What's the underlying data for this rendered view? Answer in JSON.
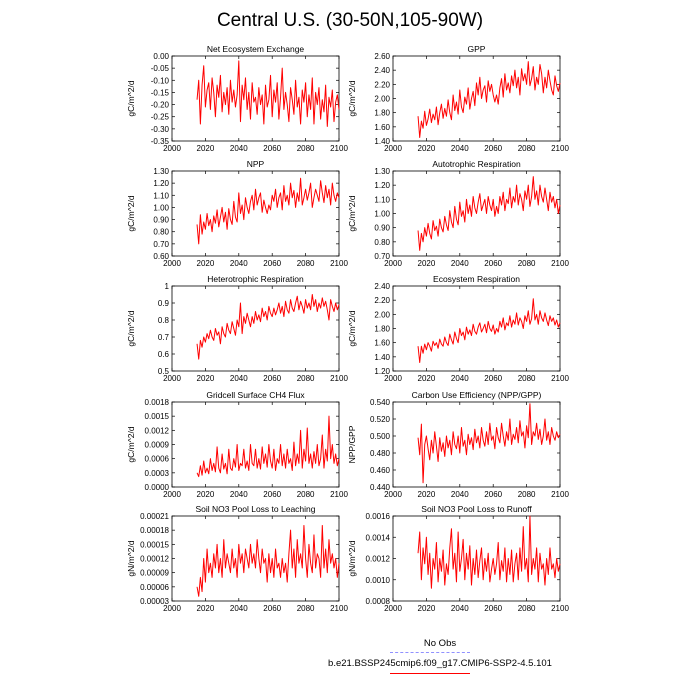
{
  "title": "Central U.S. (30-50N,105-90W)",
  "legend": {
    "obs_label": "No Obs",
    "obs_color": "#9090ff",
    "model_label": "b.e21.BSSP245cmip6.f09_g17.CMIP6-SSP2-4.5.101",
    "model_color": "#ff0000"
  },
  "chart_data": [
    {
      "type": "line",
      "title": "Net Ecosystem Exchange",
      "ylabel": "gC/m^2/d",
      "xlim": [
        2000,
        2100
      ],
      "ylim": [
        -0.35,
        0.0
      ],
      "xticks": [
        2000,
        2020,
        2040,
        2060,
        2080,
        2100
      ],
      "yticks": [
        -0.35,
        -0.3,
        -0.25,
        -0.2,
        -0.15,
        -0.1,
        -0.05,
        0.0
      ],
      "ytick_labels": [
        "-0.35",
        "-0.30",
        "-0.25",
        "-0.20",
        "-0.15",
        "-0.10",
        "-0.05",
        "0.00"
      ],
      "x_start": 2015,
      "x_end": 2100,
      "y": [
        -0.18,
        -0.1,
        -0.28,
        -0.12,
        -0.04,
        -0.21,
        -0.14,
        -0.11,
        -0.22,
        -0.09,
        -0.15,
        -0.25,
        -0.12,
        -0.17,
        -0.08,
        -0.23,
        -0.15,
        -0.2,
        -0.13,
        -0.24,
        -0.1,
        -0.19,
        -0.14,
        -0.21,
        -0.16,
        -0.02,
        -0.27,
        -0.12,
        -0.18,
        -0.09,
        -0.22,
        -0.15,
        -0.26,
        -0.11,
        -0.19,
        -0.17,
        -0.24,
        -0.13,
        -0.2,
        -0.16,
        -0.28,
        -0.12,
        -0.21,
        -0.18,
        -0.08,
        -0.25,
        -0.14,
        -0.19,
        -0.11,
        -0.26,
        -0.17,
        -0.05,
        -0.22,
        -0.15,
        -0.2,
        -0.27,
        -0.13,
        -0.18,
        -0.24,
        -0.1,
        -0.21,
        -0.17,
        -0.28,
        -0.14,
        -0.19,
        -0.11,
        -0.25,
        -0.16,
        -0.22,
        -0.09,
        -0.28,
        -0.15,
        -0.2,
        -0.13,
        -0.26,
        -0.18,
        -0.23,
        -0.12,
        -0.29,
        -0.17,
        -0.21,
        -0.14,
        -0.27,
        -0.19,
        -0.16,
        -0.22
      ]
    },
    {
      "type": "line",
      "title": "GPP",
      "ylabel": "gC/m^2/d",
      "xlim": [
        2000,
        2100
      ],
      "ylim": [
        1.4,
        2.6
      ],
      "xticks": [
        2000,
        2020,
        2040,
        2060,
        2080,
        2100
      ],
      "yticks": [
        1.4,
        1.6,
        1.8,
        2.0,
        2.2,
        2.4,
        2.6
      ],
      "ytick_labels": [
        "1.40",
        "1.60",
        "1.80",
        "2.00",
        "2.20",
        "2.40",
        "2.60"
      ],
      "x_start": 2015,
      "x_end": 2100,
      "y": [
        1.75,
        1.45,
        1.68,
        1.58,
        1.82,
        1.62,
        1.71,
        1.85,
        1.66,
        1.78,
        1.7,
        1.88,
        1.63,
        1.8,
        1.92,
        1.72,
        1.86,
        1.75,
        1.98,
        1.8,
        1.7,
        2.05,
        1.83,
        1.95,
        1.78,
        2.12,
        1.88,
        1.8,
        2.02,
        1.92,
        2.15,
        1.85,
        2.0,
        2.1,
        1.9,
        2.22,
        2.05,
        2.3,
        2.0,
        2.12,
        2.18,
        1.95,
        2.25,
        2.1,
        2.2,
        2.05,
        1.95,
        2.05,
        1.92,
        2.15,
        2.28,
        2.02,
        2.35,
        2.12,
        2.22,
        2.08,
        2.32,
        2.18,
        2.4,
        2.15,
        2.3,
        2.05,
        2.42,
        2.25,
        2.35,
        2.2,
        2.52,
        2.18,
        2.28,
        2.45,
        2.12,
        2.3,
        2.2,
        2.48,
        2.35,
        2.08,
        2.3,
        2.15,
        2.4,
        2.25,
        2.12,
        2.05,
        2.32,
        2.18,
        2.1,
        2.22
      ]
    },
    {
      "type": "line",
      "title": "NPP",
      "ylabel": "gC/m^2/d",
      "xlim": [
        2000,
        2100
      ],
      "ylim": [
        0.6,
        1.3
      ],
      "xticks": [
        2000,
        2020,
        2040,
        2060,
        2080,
        2100
      ],
      "yticks": [
        0.6,
        0.7,
        0.8,
        0.9,
        1.0,
        1.1,
        1.2,
        1.3
      ],
      "ytick_labels": [
        "0.60",
        "0.70",
        "0.80",
        "0.90",
        "1.00",
        "1.10",
        "1.20",
        "1.30"
      ],
      "x_start": 2015,
      "x_end": 2100,
      "y": [
        0.86,
        0.7,
        0.94,
        0.78,
        0.88,
        0.82,
        0.95,
        0.85,
        0.9,
        0.8,
        0.93,
        0.87,
        0.98,
        0.84,
        0.92,
        1.0,
        0.88,
        0.96,
        0.82,
        0.99,
        0.9,
        0.86,
        1.05,
        0.92,
        0.88,
        1.12,
        0.95,
        1.02,
        0.9,
        1.08,
        1.0,
        0.95,
        1.05,
        1.1,
        0.98,
        1.15,
        1.02,
        1.08,
        1.12,
        0.96,
        1.06,
        1.0,
        0.95,
        1.02,
        0.98,
        1.1,
        1.05,
        1.15,
        1.0,
        1.08,
        1.12,
        0.98,
        1.18,
        1.05,
        1.1,
        1.02,
        1.2,
        1.08,
        1.14,
        1.0,
        1.12,
        1.05,
        1.24,
        1.02,
        1.08,
        1.15,
        1.06,
        1.12,
        1.2,
        1.0,
        1.08,
        1.15,
        1.1,
        1.05,
        1.22,
        1.12,
        1.04,
        1.18,
        1.08,
        1.15,
        1.02,
        1.2,
        1.1,
        1.05,
        1.12,
        1.08
      ]
    },
    {
      "type": "line",
      "title": "Autotrophic Respiration",
      "ylabel": "gC/m^2/d",
      "xlim": [
        2000,
        2100
      ],
      "ylim": [
        0.7,
        1.3
      ],
      "xticks": [
        2000,
        2020,
        2040,
        2060,
        2080,
        2100
      ],
      "yticks": [
        0.7,
        0.8,
        0.9,
        1.0,
        1.1,
        1.2,
        1.3
      ],
      "ytick_labels": [
        "0.70",
        "0.80",
        "0.90",
        "1.00",
        "1.10",
        "1.20",
        "1.30"
      ],
      "x_start": 2015,
      "x_end": 2100,
      "y": [
        0.88,
        0.74,
        0.86,
        0.8,
        0.9,
        0.84,
        0.93,
        0.86,
        0.82,
        0.95,
        0.88,
        0.91,
        0.84,
        0.96,
        0.9,
        0.87,
        0.98,
        0.92,
        0.88,
        1.02,
        0.94,
        0.9,
        1.05,
        0.96,
        0.92,
        1.08,
        0.98,
        1.02,
        0.94,
        1.1,
        1.0,
        1.06,
        0.98,
        1.12,
        1.04,
        1.0,
        1.08,
        1.14,
        1.02,
        1.06,
        1.1,
        1.0,
        1.12,
        1.06,
        1.02,
        1.1,
        0.98,
        1.05,
        1.0,
        1.12,
        1.06,
        1.15,
        1.02,
        1.1,
        1.07,
        1.18,
        1.04,
        1.12,
        1.08,
        1.2,
        1.06,
        1.14,
        1.1,
        1.02,
        1.16,
        1.1,
        1.2,
        1.05,
        1.12,
        1.26,
        1.1,
        1.16,
        1.06,
        1.2,
        1.12,
        1.08,
        1.18,
        1.1,
        1.02,
        1.15,
        1.08,
        1.12,
        1.04,
        1.1,
        1.0,
        1.06
      ]
    },
    {
      "type": "line",
      "title": "Heterotrophic Respiration",
      "ylabel": "gC/m^2/d",
      "xlim": [
        2000,
        2100
      ],
      "ylim": [
        0.5,
        1.0
      ],
      "xticks": [
        2000,
        2020,
        2040,
        2060,
        2080,
        2100
      ],
      "yticks": [
        0.5,
        0.6,
        0.7,
        0.8,
        0.9,
        1.0
      ],
      "ytick_labels": [
        "0.5",
        "0.6",
        "0.7",
        "0.8",
        "0.9",
        "1"
      ],
      "x_start": 2015,
      "x_end": 2100,
      "y": [
        0.66,
        0.57,
        0.68,
        0.64,
        0.7,
        0.67,
        0.72,
        0.69,
        0.74,
        0.7,
        0.68,
        0.75,
        0.71,
        0.73,
        0.66,
        0.76,
        0.72,
        0.7,
        0.78,
        0.74,
        0.72,
        0.79,
        0.75,
        0.71,
        0.8,
        0.76,
        0.9,
        0.72,
        0.82,
        0.78,
        0.84,
        0.8,
        0.76,
        0.82,
        0.78,
        0.85,
        0.8,
        0.83,
        0.79,
        0.87,
        0.82,
        0.85,
        0.8,
        0.88,
        0.84,
        0.82,
        0.87,
        0.83,
        0.86,
        0.9,
        0.84,
        0.88,
        0.82,
        0.91,
        0.86,
        0.84,
        0.92,
        0.87,
        0.85,
        0.9,
        0.94,
        0.86,
        0.91,
        0.88,
        0.84,
        0.92,
        0.87,
        0.9,
        0.86,
        0.95,
        0.88,
        0.92,
        0.85,
        0.9,
        0.87,
        0.93,
        0.88,
        0.91,
        0.86,
        0.8,
        0.92,
        0.88,
        0.85,
        0.9,
        0.86,
        0.89
      ]
    },
    {
      "type": "line",
      "title": "Ecosystem Respiration",
      "ylabel": "gC/m^2/d",
      "xlim": [
        2000,
        2100
      ],
      "ylim": [
        1.2,
        2.4
      ],
      "xticks": [
        2000,
        2020,
        2040,
        2060,
        2080,
        2100
      ],
      "yticks": [
        1.2,
        1.4,
        1.6,
        1.8,
        2.0,
        2.2,
        2.4
      ],
      "ytick_labels": [
        "1.20",
        "1.40",
        "1.60",
        "1.80",
        "2.00",
        "2.20",
        "2.40"
      ],
      "x_start": 2015,
      "x_end": 2100,
      "y": [
        1.55,
        1.32,
        1.55,
        1.45,
        1.58,
        1.5,
        1.6,
        1.55,
        1.48,
        1.62,
        1.56,
        1.6,
        1.52,
        1.65,
        1.58,
        1.55,
        1.68,
        1.6,
        1.56,
        1.72,
        1.64,
        1.58,
        1.75,
        1.66,
        1.6,
        1.8,
        1.7,
        1.75,
        1.64,
        1.82,
        1.72,
        1.78,
        1.7,
        1.86,
        1.76,
        1.72,
        1.82,
        1.88,
        1.75,
        1.8,
        1.86,
        1.74,
        1.9,
        1.8,
        1.76,
        1.85,
        1.72,
        1.8,
        1.75,
        1.9,
        1.82,
        1.95,
        1.78,
        1.88,
        1.84,
        1.98,
        1.82,
        1.92,
        1.86,
        2.02,
        1.85,
        1.95,
        1.9,
        1.8,
        1.98,
        1.9,
        2.05,
        1.86,
        1.94,
        2.22,
        1.92,
        2.0,
        1.86,
        2.05,
        1.95,
        1.9,
        2.02,
        1.92,
        1.84,
        1.98,
        1.9,
        1.95,
        1.85,
        1.92,
        1.82,
        1.88
      ]
    },
    {
      "type": "line",
      "title": "Gridcell Surface CH4 Flux",
      "ylabel": "gC/m^2/d",
      "xlim": [
        2000,
        2100
      ],
      "ylim": [
        0.0,
        0.0018
      ],
      "xticks": [
        2000,
        2020,
        2040,
        2060,
        2080,
        2100
      ],
      "yticks": [
        0.0,
        0.0003,
        0.0006,
        0.0009,
        0.0012,
        0.0015,
        0.0018
      ],
      "ytick_labels": [
        "0.0000",
        "0.0003",
        "0.0006",
        "0.0009",
        "0.0012",
        "0.0015",
        "0.0018"
      ],
      "x_start": 2015,
      "x_end": 2100,
      "y": [
        0.0003,
        0.00022,
        0.00045,
        0.00025,
        0.00055,
        0.0003,
        0.0004,
        0.00028,
        0.0006,
        0.00035,
        0.0005,
        0.00032,
        0.00085,
        0.0004,
        0.0003,
        0.0007,
        0.00038,
        0.0005,
        0.00028,
        0.0008,
        0.0004,
        0.00035,
        0.0006,
        0.00042,
        0.0009,
        0.00035,
        0.0005,
        0.00045,
        0.0008,
        0.0004,
        0.00055,
        0.00035,
        0.0009,
        0.0005,
        0.00045,
        0.0008,
        0.0004,
        0.0006,
        0.00038,
        0.00085,
        0.0005,
        0.0007,
        0.00042,
        0.0009,
        0.00055,
        0.0004,
        0.0008,
        0.00035,
        0.0006,
        0.0005,
        0.0009,
        0.00045,
        0.0007,
        0.0004,
        0.0008,
        0.0005,
        0.0006,
        0.00035,
        0.00095,
        0.00045,
        0.0007,
        0.0005,
        0.0012,
        0.0004,
        0.0008,
        0.00055,
        0.00125,
        0.0005,
        0.0007,
        0.0004,
        0.00075,
        0.0005,
        0.0009,
        0.00045,
        0.0006,
        0.0011,
        0.0004,
        0.0008,
        0.00055,
        0.0015,
        0.0006,
        0.0009,
        0.0005,
        0.0007,
        0.00045,
        0.0006
      ]
    },
    {
      "type": "line",
      "title": "Carbon Use Efficiency (NPP/GPP)",
      "ylabel": "NPP/GPP",
      "xlim": [
        2000,
        2100
      ],
      "ylim": [
        0.44,
        0.54
      ],
      "xticks": [
        2000,
        2020,
        2040,
        2060,
        2080,
        2100
      ],
      "yticks": [
        0.44,
        0.46,
        0.48,
        0.5,
        0.52,
        0.54
      ],
      "ytick_labels": [
        "0.440",
        "0.460",
        "0.480",
        "0.500",
        "0.520",
        "0.540"
      ],
      "x_start": 2015,
      "x_end": 2100,
      "y": [
        0.498,
        0.478,
        0.514,
        0.445,
        0.49,
        0.5,
        0.485,
        0.472,
        0.495,
        0.48,
        0.505,
        0.488,
        0.47,
        0.498,
        0.482,
        0.492,
        0.476,
        0.5,
        0.486,
        0.495,
        0.478,
        0.505,
        0.49,
        0.485,
        0.5,
        0.48,
        0.51,
        0.488,
        0.495,
        0.478,
        0.502,
        0.49,
        0.498,
        0.484,
        0.508,
        0.492,
        0.5,
        0.486,
        0.51,
        0.495,
        0.488,
        0.505,
        0.49,
        0.515,
        0.495,
        0.5,
        0.485,
        0.51,
        0.498,
        0.492,
        0.515,
        0.5,
        0.488,
        0.505,
        0.495,
        0.52,
        0.49,
        0.502,
        0.496,
        0.51,
        0.492,
        0.518,
        0.5,
        0.505,
        0.486,
        0.512,
        0.498,
        0.538,
        0.49,
        0.505,
        0.5,
        0.515,
        0.496,
        0.508,
        0.49,
        0.5,
        0.52,
        0.495,
        0.505,
        0.49,
        0.51,
        0.5,
        0.495,
        0.505,
        0.498,
        0.502
      ]
    },
    {
      "type": "line",
      "title": "Soil NO3 Pool Loss to Leaching",
      "ylabel": "gN/m^2/d",
      "xlim": [
        2000,
        2100
      ],
      "ylim": [
        3e-05,
        0.00021
      ],
      "xticks": [
        2000,
        2020,
        2040,
        2060,
        2080,
        2100
      ],
      "yticks": [
        3e-05,
        6e-05,
        9e-05,
        0.00012,
        0.00015,
        0.00018,
        0.00021
      ],
      "ytick_labels": [
        "0.00003",
        "0.00006",
        "0.00009",
        "0.00012",
        "0.00015",
        "0.00018",
        "0.00021"
      ],
      "x_start": 2015,
      "x_end": 2100,
      "y": [
        6e-05,
        4e-05,
        8e-05,
        5e-05,
        0.00012,
        7e-05,
        0.00014,
        9e-05,
        0.00011,
        8e-05,
        0.00013,
        0.0001,
        0.00015,
        9e-05,
        0.00012,
        8e-05,
        0.00016,
        0.0001,
        0.00013,
        0.00011,
        9e-05,
        0.00014,
        0.0001,
        0.00012,
        8e-05,
        0.00015,
        0.00011,
        0.00013,
        9e-05,
        0.00014,
        0.00012,
        0.0001,
        0.00015,
        0.00011,
        0.00013,
        0.0001,
        0.00016,
        0.00012,
        9e-05,
        0.00014,
        0.00011,
        0.00012,
        7e-05,
        0.00013,
        9e-05,
        0.00012,
        8e-05,
        0.00014,
        0.0001,
        0.00011,
        8e-05,
        0.00012,
        9e-05,
        0.00011,
        7e-05,
        0.00013,
        0.00018,
        0.0001,
        0.00014,
        8e-05,
        0.00016,
        0.00011,
        0.00013,
        0.0001,
        0.00019,
        0.00012,
        8e-05,
        0.00015,
        0.00011,
        9e-05,
        0.00017,
        0.0001,
        0.00013,
        0.00012,
        8e-05,
        0.00019,
        0.0001,
        0.00014,
        9e-05,
        0.00016,
        0.00011,
        0.00013,
        0.0001,
        0.00012,
        8e-05,
        0.00011
      ]
    },
    {
      "type": "line",
      "title": "Soil NO3 Pool Loss to Runoff",
      "ylabel": "gN/m^2/d",
      "xlim": [
        2000,
        2100
      ],
      "ylim": [
        0.0008,
        0.0016
      ],
      "xticks": [
        2000,
        2020,
        2040,
        2060,
        2080,
        2100
      ],
      "yticks": [
        0.0008,
        0.001,
        0.0012,
        0.0014,
        0.0016
      ],
      "ytick_labels": [
        "0.0008",
        "0.0010",
        "0.0012",
        "0.0014",
        "0.0016"
      ],
      "x_start": 2015,
      "x_end": 2100,
      "y": [
        0.00125,
        0.00145,
        0.001,
        0.0013,
        0.00115,
        0.0014,
        0.00105,
        0.00125,
        0.00092,
        0.0012,
        0.0011,
        0.00135,
        0.00098,
        0.0012,
        0.00108,
        0.00128,
        0.00095,
        0.00115,
        0.00105,
        0.0013,
        0.00148,
        0.0011,
        0.00125,
        0.00098,
        0.00145,
        0.00108,
        0.0012,
        0.00138,
        0.001,
        0.00125,
        0.0011,
        0.00132,
        0.00095,
        0.0012,
        0.00105,
        0.00128,
        0.00102,
        0.00118,
        0.0013,
        0.001,
        0.0012,
        0.00108,
        0.00125,
        0.00098,
        0.0011,
        0.0012,
        0.00105,
        0.00115,
        0.00135,
        0.001,
        0.00118,
        0.00108,
        0.0013,
        0.00098,
        0.0012,
        0.00105,
        0.00128,
        0.00098,
        0.00115,
        0.00125,
        0.001,
        0.0013,
        0.00108,
        0.0015,
        0.0011,
        0.0012,
        0.00098,
        0.0016,
        0.00105,
        0.0012,
        0.0011,
        0.0013,
        0.00098,
        0.00125,
        0.0011,
        0.00115,
        0.00095,
        0.0012,
        0.00105,
        0.0013,
        0.0011,
        0.00115,
        0.00102,
        0.0012,
        0.00108,
        0.00115
      ]
    }
  ]
}
